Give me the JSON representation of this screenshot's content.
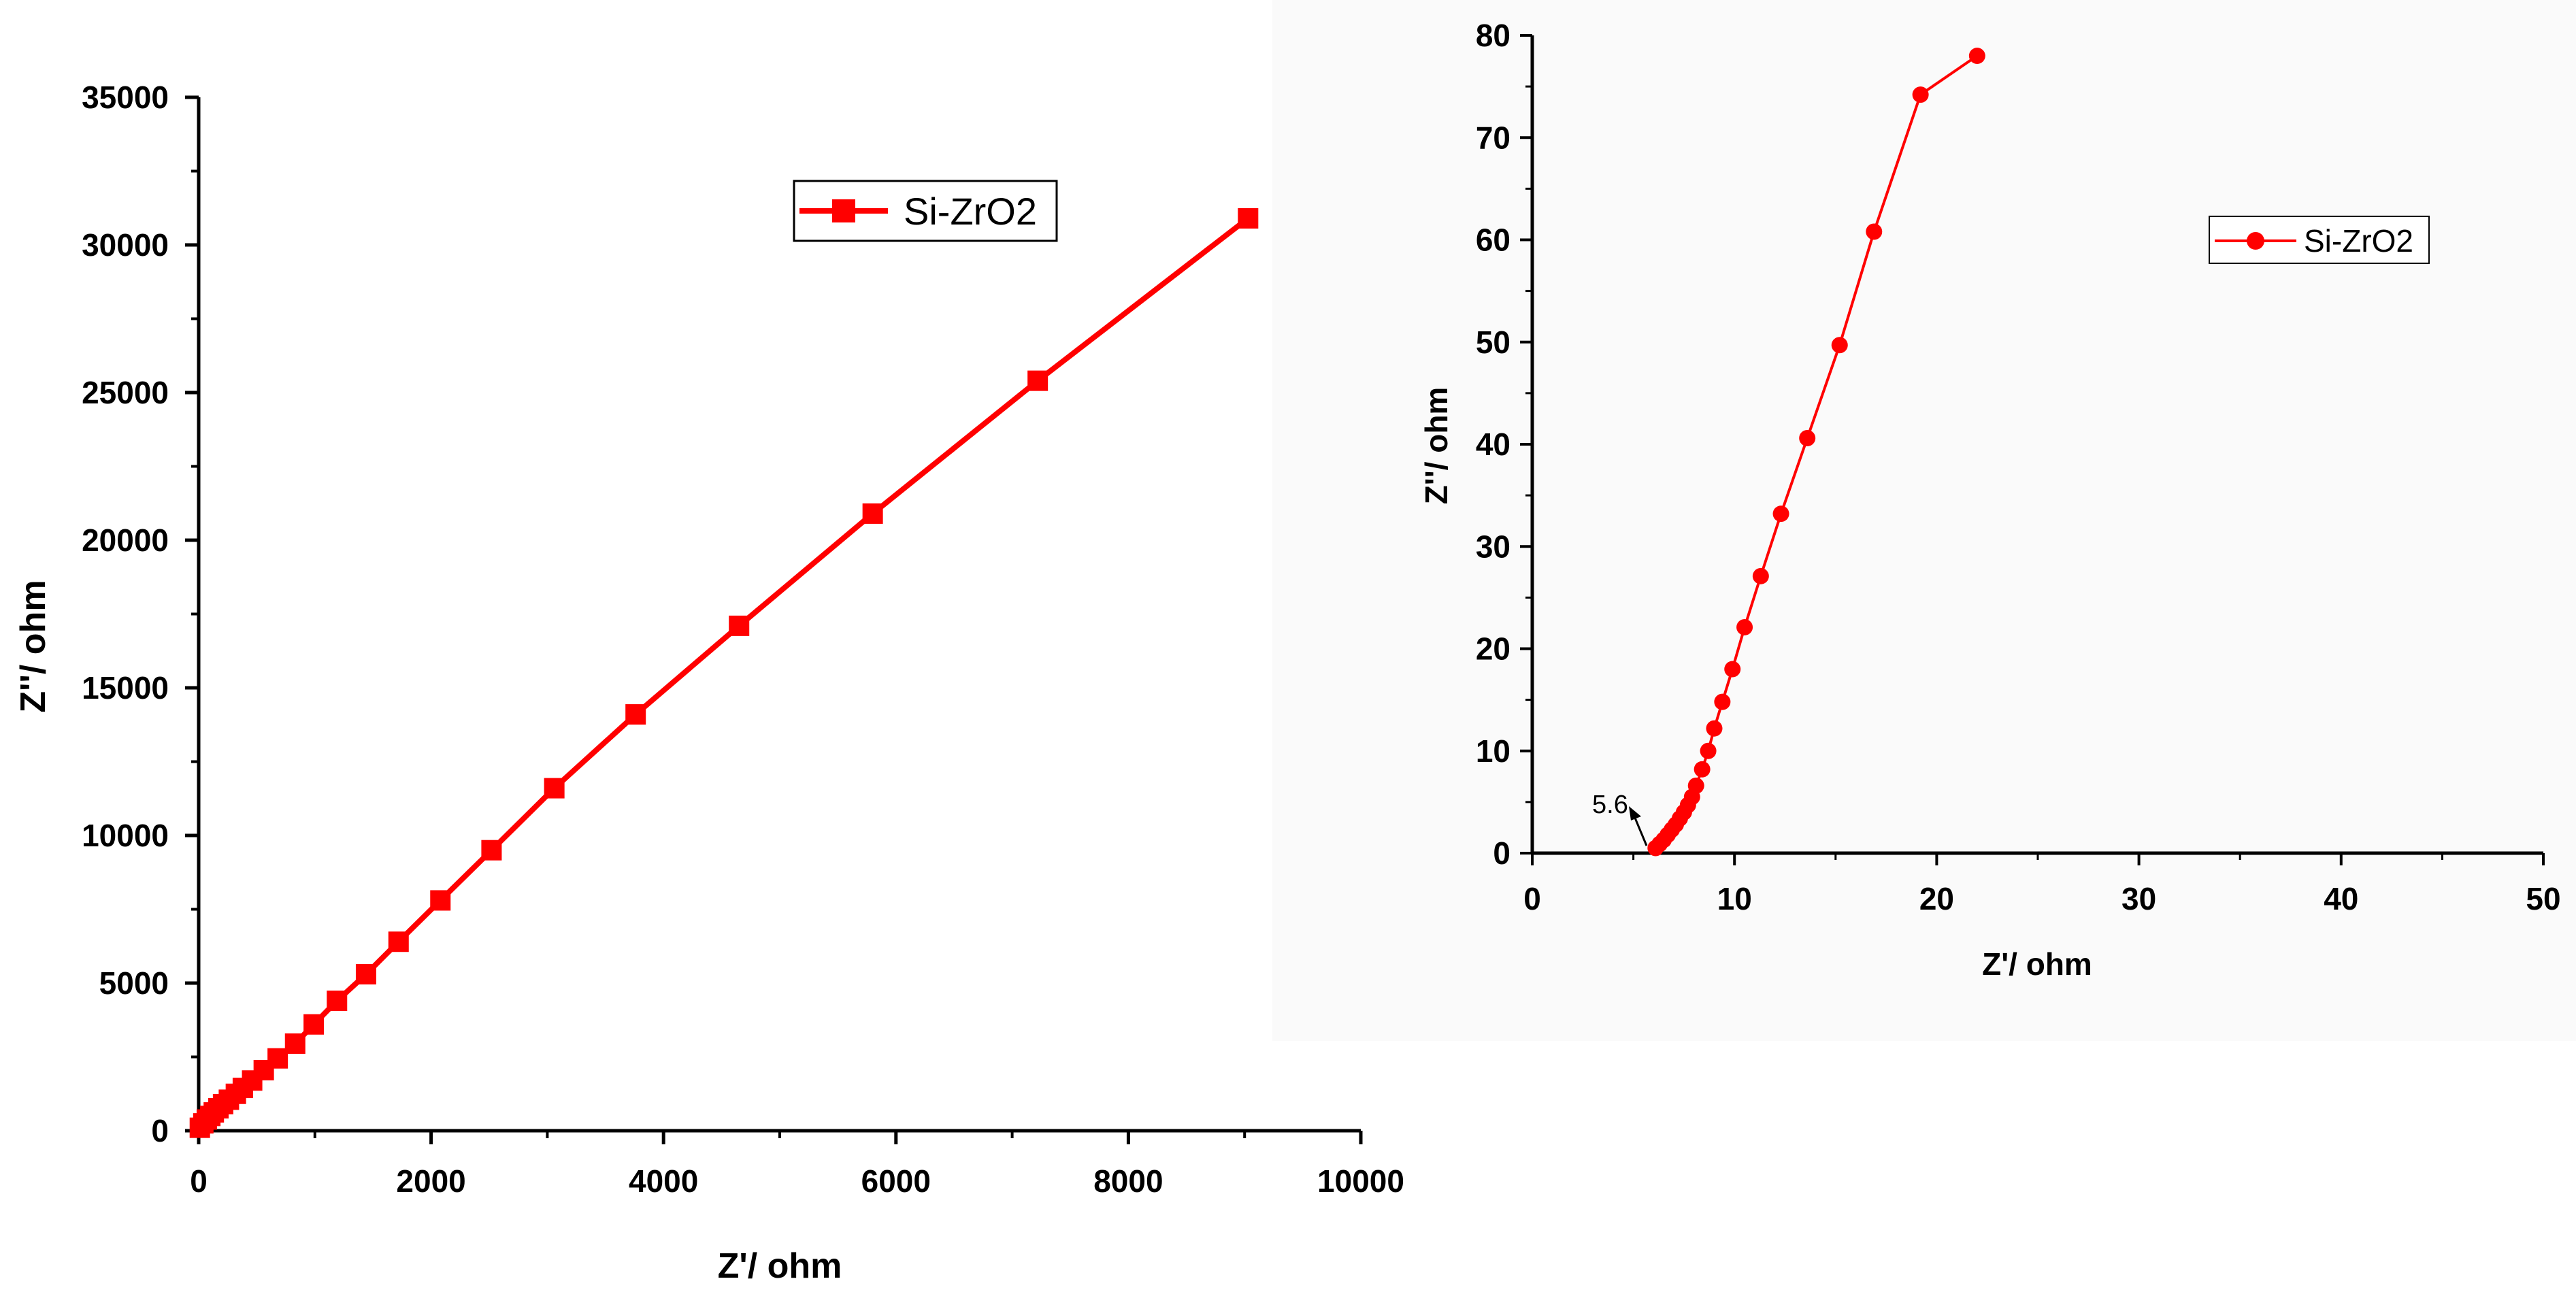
{
  "chart_data": [
    {
      "type": "line",
      "panel": "left",
      "title": "",
      "xlabel": "Z'/ ohm",
      "ylabel": "Z''/ ohm",
      "xlim": [
        0,
        10000
      ],
      "ylim": [
        0,
        35000
      ],
      "x_ticks": [
        0,
        2000,
        4000,
        6000,
        8000,
        10000
      ],
      "y_ticks": [
        0,
        5000,
        10000,
        15000,
        20000,
        25000,
        30000,
        35000
      ],
      "x_tick_labels": [
        "0",
        "2000",
        "4000",
        "6000",
        "8000",
        "10000"
      ],
      "y_tick_labels": [
        "0",
        "5000",
        "10000",
        "15000",
        "20000",
        "25000",
        "30000",
        "35000"
      ],
      "legend": {
        "position": "top-right",
        "entries": [
          "Si-ZrO2"
        ],
        "marker": "square"
      },
      "series": [
        {
          "name": "Si-ZrO2",
          "color": "#ff0000",
          "marker": "square",
          "x": [
            10,
            40,
            70,
            100,
            130,
            170,
            210,
            260,
            320,
            380,
            460,
            560,
            680,
            830,
            990,
            1190,
            1440,
            1720,
            2080,
            2520,
            3060,
            3760,
            4650,
            5800,
            7220,
            9030
          ],
          "y": [
            100,
            250,
            380,
            500,
            620,
            760,
            900,
            1050,
            1250,
            1450,
            1700,
            2050,
            2450,
            2950,
            3600,
            4400,
            5300,
            6400,
            7800,
            9500,
            11600,
            14100,
            17100,
            20900,
            25400,
            30900
          ]
        }
      ]
    },
    {
      "type": "line",
      "panel": "right",
      "title": "",
      "xlabel": "Z'/ ohm",
      "ylabel": "Z''/ ohm",
      "xlim": [
        0,
        50
      ],
      "ylim": [
        0,
        80
      ],
      "x_ticks": [
        0,
        10,
        20,
        30,
        40,
        50
      ],
      "y_ticks": [
        0,
        10,
        20,
        30,
        40,
        50,
        60,
        70,
        80
      ],
      "x_tick_labels": [
        "0",
        "10",
        "20",
        "30",
        "40",
        "50"
      ],
      "y_tick_labels": [
        "0",
        "10",
        "20",
        "30",
        "40",
        "50",
        "60",
        "70",
        "80"
      ],
      "legend": {
        "position": "top-right",
        "entries": [
          "Si-ZrO2"
        ],
        "marker": "circle"
      },
      "annotations": [
        {
          "text": "5.6",
          "x": 5.6,
          "y": 0
        }
      ],
      "series": [
        {
          "name": "Si-ZrO2",
          "color": "#ff0000",
          "marker": "circle",
          "x": [
            6.1,
            6.3,
            6.5,
            6.7,
            6.9,
            7.1,
            7.3,
            7.5,
            7.7,
            7.9,
            8.1,
            8.4,
            8.7,
            9.0,
            9.4,
            9.9,
            10.5,
            11.3,
            12.3,
            13.6,
            15.2,
            16.9,
            19.2,
            22.0
          ],
          "y": [
            0.5,
            0.9,
            1.3,
            1.8,
            2.3,
            2.8,
            3.4,
            4.0,
            4.7,
            5.5,
            6.6,
            8.2,
            10.0,
            12.2,
            14.8,
            18.0,
            22.1,
            27.1,
            33.2,
            40.6,
            49.7,
            60.8,
            74.2,
            78.0
          ]
        }
      ]
    }
  ]
}
